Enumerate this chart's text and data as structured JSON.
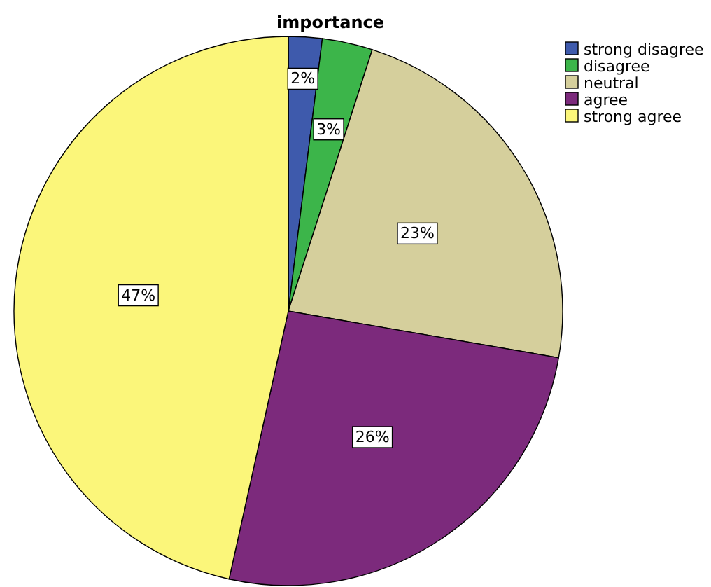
{
  "chart_data": {
    "type": "pie",
    "title": "importance",
    "categories": [
      "strong disagree",
      "disagree",
      "neutral",
      "agree",
      "strong agree"
    ],
    "values": [
      2,
      3,
      23,
      26,
      47
    ],
    "colors": [
      "#3e5aac",
      "#3cb54a",
      "#d5cf9c",
      "#7c2a7c",
      "#fbf67a"
    ],
    "value_labels": [
      "2%",
      "3%",
      "23%",
      "26%",
      "47%"
    ],
    "legend": "top right"
  }
}
